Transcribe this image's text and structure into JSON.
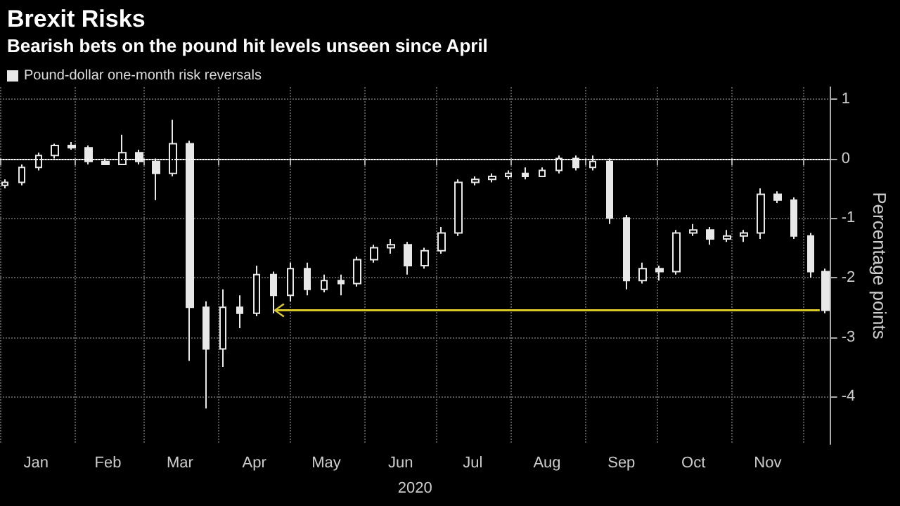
{
  "chart_data": {
    "type": "candlestick",
    "title": "Brexit Risks",
    "subtitle": "Bearish bets on the pound hit levels unseen since April",
    "xlabel": "2020",
    "ylabel": "Percentage points",
    "x": [
      "2020-01-03",
      "2020-01-10",
      "2020-01-17",
      "2020-01-24",
      "2020-01-31",
      "2020-02-07",
      "2020-02-14",
      "2020-02-21",
      "2020-02-28",
      "2020-03-06",
      "2020-03-13",
      "2020-03-20",
      "2020-03-27",
      "2020-04-03",
      "2020-04-10",
      "2020-04-17",
      "2020-04-24",
      "2020-05-01",
      "2020-05-08",
      "2020-05-15",
      "2020-05-22",
      "2020-05-29",
      "2020-06-05",
      "2020-06-12",
      "2020-06-19",
      "2020-06-26",
      "2020-07-03",
      "2020-07-10",
      "2020-07-17",
      "2020-07-24",
      "2020-07-31",
      "2020-08-07",
      "2020-08-14",
      "2020-08-21",
      "2020-08-28",
      "2020-09-04",
      "2020-09-11",
      "2020-09-18",
      "2020-09-25",
      "2020-10-02",
      "2020-10-09",
      "2020-10-16",
      "2020-10-23",
      "2020-10-30",
      "2020-11-06",
      "2020-11-13",
      "2020-11-20",
      "2020-11-27",
      "2020-12-04",
      "2020-12-10"
    ],
    "series": [
      {
        "name": "Pound-dollar one-month risk reversals",
        "color": "#e8e8e8",
        "ohlc": [
          [
            -0.45,
            -0.35,
            -0.5,
            -0.4
          ],
          [
            -0.4,
            -0.1,
            -0.45,
            -0.15
          ],
          [
            -0.15,
            0.1,
            -0.2,
            0.05
          ],
          [
            0.05,
            0.25,
            0.0,
            0.22
          ],
          [
            0.22,
            0.28,
            0.15,
            0.18
          ],
          [
            0.18,
            0.22,
            -0.1,
            -0.05
          ],
          [
            -0.05,
            0.0,
            -0.1,
            -0.1
          ],
          [
            -0.1,
            0.4,
            -0.1,
            0.1
          ],
          [
            0.1,
            0.15,
            -0.1,
            -0.05
          ],
          [
            -0.05,
            0.0,
            -0.7,
            -0.25
          ],
          [
            -0.25,
            0.65,
            -0.3,
            0.25
          ],
          [
            0.25,
            0.3,
            -3.4,
            -2.5
          ],
          [
            -2.5,
            -2.4,
            -4.2,
            -3.2
          ],
          [
            -3.2,
            -2.2,
            -3.5,
            -2.5
          ],
          [
            -2.5,
            -2.3,
            -2.85,
            -2.6
          ],
          [
            -2.6,
            -1.8,
            -2.65,
            -1.95
          ],
          [
            -1.95,
            -1.9,
            -2.6,
            -2.3
          ],
          [
            -2.3,
            -1.75,
            -2.4,
            -1.85
          ],
          [
            -1.85,
            -1.75,
            -2.3,
            -2.2
          ],
          [
            -2.2,
            -1.95,
            -2.25,
            -2.05
          ],
          [
            -2.05,
            -1.95,
            -2.3,
            -2.1
          ],
          [
            -2.1,
            -1.65,
            -2.15,
            -1.7
          ],
          [
            -1.7,
            -1.45,
            -1.75,
            -1.5
          ],
          [
            -1.5,
            -1.35,
            -1.6,
            -1.45
          ],
          [
            -1.45,
            -1.4,
            -1.95,
            -1.8
          ],
          [
            -1.8,
            -1.5,
            -1.85,
            -1.55
          ],
          [
            -1.55,
            -1.15,
            -1.6,
            -1.25
          ],
          [
            -1.25,
            -0.35,
            -1.3,
            -0.4
          ],
          [
            -0.4,
            -0.3,
            -0.45,
            -0.35
          ],
          [
            -0.35,
            -0.25,
            -0.4,
            -0.3
          ],
          [
            -0.3,
            -0.2,
            -0.35,
            -0.25
          ],
          [
            -0.25,
            -0.15,
            -0.35,
            -0.3
          ],
          [
            -0.3,
            -0.15,
            -0.3,
            -0.2
          ],
          [
            -0.2,
            0.05,
            -0.25,
            0.0
          ],
          [
            0.0,
            0.05,
            -0.2,
            -0.15
          ],
          [
            -0.15,
            0.05,
            -0.2,
            -0.05
          ],
          [
            -0.05,
            0.0,
            -1.1,
            -1.0
          ],
          [
            -1.0,
            -0.95,
            -2.2,
            -2.05
          ],
          [
            -2.05,
            -1.75,
            -2.1,
            -1.85
          ],
          [
            -1.85,
            -1.8,
            -2.05,
            -1.9
          ],
          [
            -1.9,
            -1.2,
            -1.95,
            -1.25
          ],
          [
            -1.25,
            -1.1,
            -1.3,
            -1.2
          ],
          [
            -1.2,
            -1.15,
            -1.45,
            -1.35
          ],
          [
            -1.35,
            -1.2,
            -1.4,
            -1.3
          ],
          [
            -1.3,
            -1.2,
            -1.4,
            -1.25
          ],
          [
            -1.25,
            -0.5,
            -1.35,
            -0.6
          ],
          [
            -0.6,
            -0.55,
            -0.75,
            -0.7
          ],
          [
            -0.7,
            -0.65,
            -1.35,
            -1.3
          ],
          [
            -1.3,
            -1.25,
            -2.0,
            -1.9
          ],
          [
            -1.9,
            -1.85,
            -2.6,
            -2.55
          ]
        ]
      }
    ],
    "xlim": [
      "2020-01-01",
      "2020-12-12"
    ],
    "xticks": [
      {
        "value": "2020-01-01",
        "label": null
      },
      {
        "value": "2020-01-16",
        "label": "Jan"
      },
      {
        "value": "2020-02-01",
        "label": null
      },
      {
        "value": "2020-02-15",
        "label": "Feb"
      },
      {
        "value": "2020-03-01",
        "label": null
      },
      {
        "value": "2020-03-16",
        "label": "Mar"
      },
      {
        "value": "2020-04-01",
        "label": null
      },
      {
        "value": "2020-04-16",
        "label": "Apr"
      },
      {
        "value": "2020-05-01",
        "label": null
      },
      {
        "value": "2020-05-16",
        "label": "May"
      },
      {
        "value": "2020-06-01",
        "label": null
      },
      {
        "value": "2020-06-16",
        "label": "Jun"
      },
      {
        "value": "2020-07-01",
        "label": null
      },
      {
        "value": "2020-07-16",
        "label": "Jul"
      },
      {
        "value": "2020-08-01",
        "label": null
      },
      {
        "value": "2020-08-16",
        "label": "Aug"
      },
      {
        "value": "2020-09-01",
        "label": null
      },
      {
        "value": "2020-09-16",
        "label": "Sep"
      },
      {
        "value": "2020-10-01",
        "label": null
      },
      {
        "value": "2020-10-16",
        "label": "Oct"
      },
      {
        "value": "2020-11-01",
        "label": null
      },
      {
        "value": "2020-11-16",
        "label": "Nov"
      },
      {
        "value": "2020-12-01",
        "label": null
      }
    ],
    "ylim": [
      -4.8,
      1.2
    ],
    "yticks": [
      1,
      0,
      -1,
      -2,
      -3,
      -4
    ],
    "ref_lines": [
      {
        "axis": "y",
        "value": 0,
        "color": "#ffffff",
        "line_style": "dotted"
      }
    ],
    "grid": true,
    "legend": "top left"
  }
}
